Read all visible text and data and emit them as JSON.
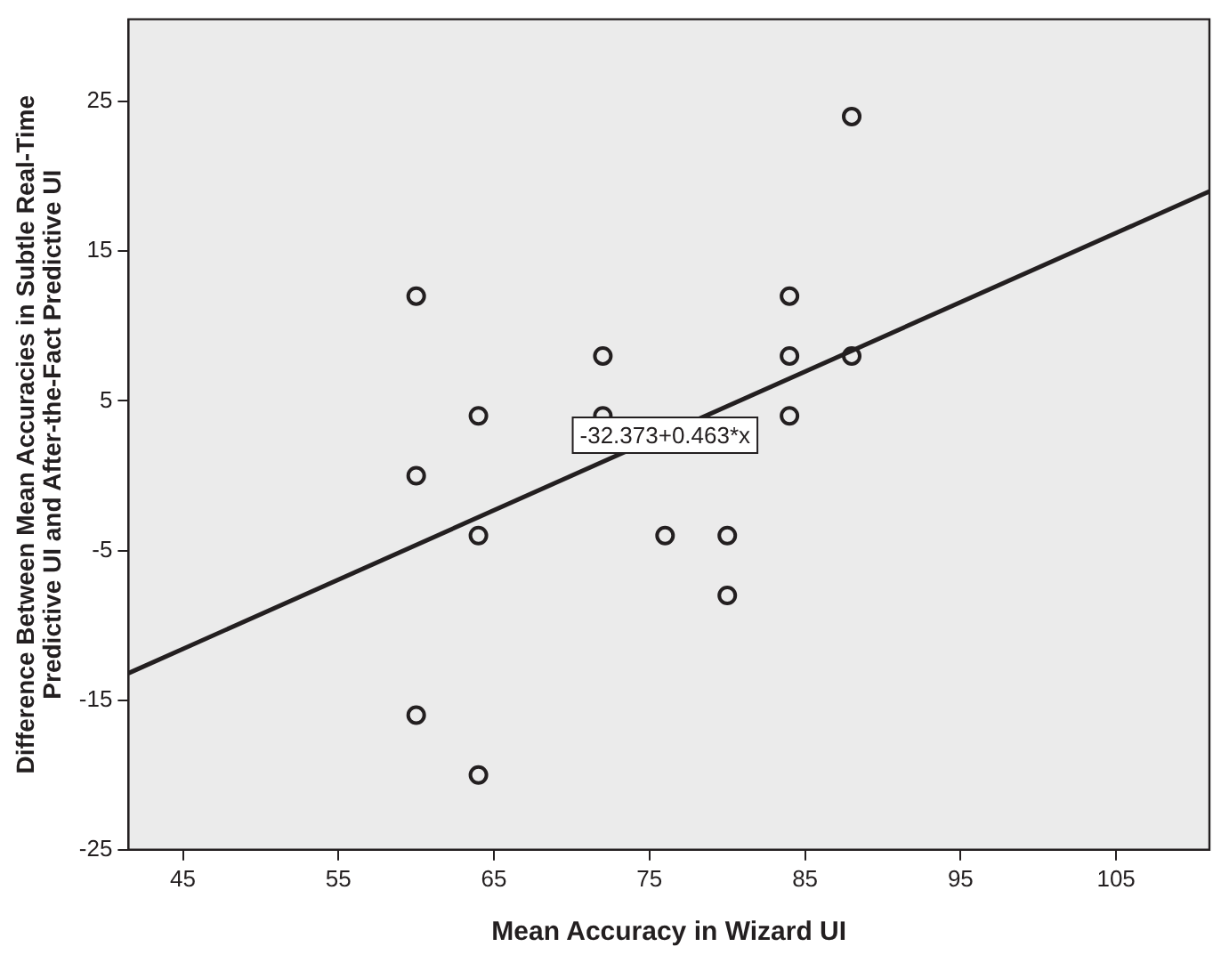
{
  "chart_data": {
    "type": "scatter",
    "xlabel": "Mean Accuracy in Wizard UI",
    "ylabel": "Difference Between Mean Accuracies in Subtle Real-Time Predictive UI and After-the-Fact Predictive UI",
    "xlim": [
      41.5,
      111
    ],
    "xticks": [
      45,
      55,
      65,
      75,
      85,
      95,
      105
    ],
    "ylim": [
      -25,
      30.5
    ],
    "yticks": [
      -25,
      -15,
      -5,
      5,
      15,
      25
    ],
    "grid": false,
    "legend": false,
    "series": [
      {
        "color": "#231f20",
        "marker": "circle",
        "x": [
          88,
          60,
          84,
          72,
          84,
          88,
          64,
          72,
          84,
          60,
          64,
          76,
          80,
          80,
          60,
          64
        ],
        "values": [
          24,
          12,
          12,
          8,
          8,
          8,
          4,
          4,
          4,
          0,
          -4,
          -4,
          -4,
          -8,
          -16,
          -20
        ]
      },
      {
        "type": "line",
        "color": "#231f20",
        "marker": "none",
        "line_style": "solid",
        "x": [
          41.5,
          111
        ],
        "values": [
          -13.2,
          19.0
        ]
      }
    ],
    "annotations": [
      {
        "text": "-32.373+0.463*x",
        "x": 76,
        "y": 2.7
      }
    ]
  }
}
